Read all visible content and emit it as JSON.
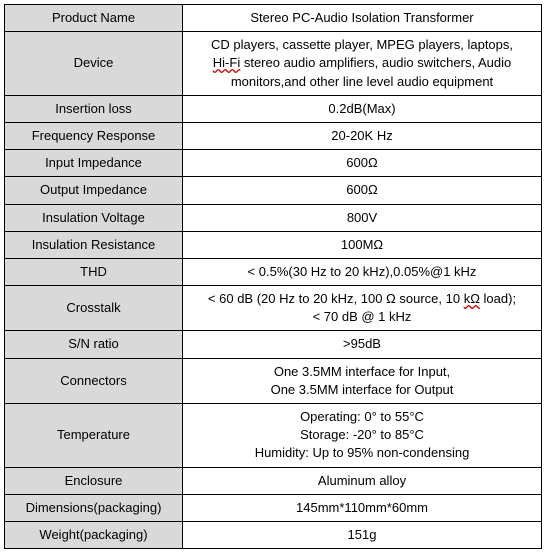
{
  "table": {
    "label_bg": "#d9d9d9",
    "value_bg": "#ffffff",
    "border_color": "#000000",
    "font_size": 13,
    "rows": [
      {
        "label": "Product Name",
        "value": "Stereo PC-Audio Isolation Transformer"
      },
      {
        "label": "Device",
        "value": "CD players, cassette player, MPEG players, laptops, Hi-Fi stereo audio amplifiers, audio switchers, Audio monitors,and other line level audio equipment"
      },
      {
        "label": "Insertion loss",
        "value": "0.2dB(Max)"
      },
      {
        "label": "Frequency Response",
        "value": "20-20K Hz"
      },
      {
        "label": "Input Impedance",
        "value": "600Ω"
      },
      {
        "label": "Output Impedance",
        "value": "600Ω"
      },
      {
        "label": "Insulation Voltage",
        "value": "800V"
      },
      {
        "label": "Insulation Resistance",
        "value": "100MΩ"
      },
      {
        "label": "THD",
        "value": "< 0.5%(30 Hz to 20 kHz),0.05%@1 kHz"
      },
      {
        "label": "Crosstalk",
        "value": "< 60 dB (20 Hz to 20 kHz, 100 Ω source, 10 kΩ load);\n< 70 dB @ 1 kHz"
      },
      {
        "label": "S/N ratio",
        "value": ">95dB"
      },
      {
        "label": "Connectors",
        "value": "One 3.5MM   interface for Input,\nOne 3.5MM interface for Output"
      },
      {
        "label": "Temperature",
        "value": "Operating: 0° to 55°C\nStorage: -20° to 85°C\nHumidity: Up to 95% non-condensing"
      },
      {
        "label": "Enclosure",
        "value": "Aluminum alloy"
      },
      {
        "label": "Dimensions(packaging)",
        "value": "145mm*110mm*60mm"
      },
      {
        "label": "Weight(packaging)",
        "value": "151g"
      }
    ]
  }
}
